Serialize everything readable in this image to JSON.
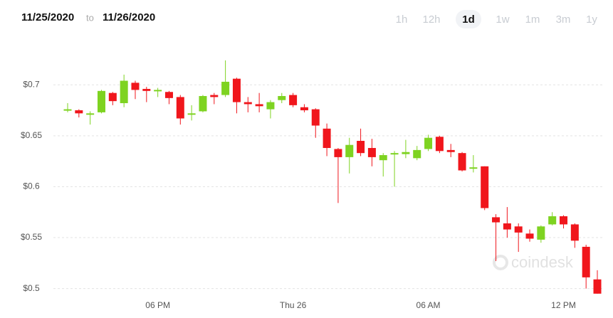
{
  "header": {
    "from_date": "11/25/2020",
    "separator": "to",
    "to_date": "11/26/2020",
    "ranges": [
      "1h",
      "12h",
      "1d",
      "1w",
      "1m",
      "3m",
      "1y"
    ],
    "active_range": "1d"
  },
  "watermark": "coindesk",
  "chart_data": {
    "type": "candlestick",
    "categories": [
      null,
      null,
      null,
      null,
      null,
      null,
      null,
      null,
      "06 PM",
      null,
      null,
      null,
      null,
      null,
      null,
      null,
      null,
      null,
      null,
      null,
      "Thu 26",
      null,
      null,
      null,
      null,
      null,
      null,
      null,
      null,
      null,
      null,
      null,
      "06 AM",
      null,
      null,
      null,
      null,
      null,
      null,
      null,
      null,
      null,
      null,
      null,
      "12 PM",
      null,
      null,
      null
    ],
    "open": [
      0.675,
      0.675,
      0.671,
      0.673,
      0.692,
      0.682,
      0.702,
      0.696,
      0.694,
      0.693,
      0.688,
      0.671,
      0.674,
      0.69,
      0.69,
      0.706,
      0.683,
      0.681,
      0.676,
      0.685,
      0.69,
      0.678,
      0.676,
      0.657,
      0.637,
      0.629,
      0.645,
      0.638,
      0.626,
      0.632,
      0.632,
      0.628,
      0.637,
      0.649,
      0.636,
      0.633,
      0.618,
      0.62,
      0.57,
      0.564,
      0.561,
      0.554,
      0.548,
      0.563,
      0.571,
      0.563,
      0.541,
      0.509
    ],
    "high": [
      0.682,
      0.676,
      0.674,
      0.695,
      0.693,
      0.71,
      0.704,
      0.698,
      0.697,
      0.694,
      0.69,
      0.68,
      0.69,
      0.692,
      0.724,
      0.707,
      0.688,
      0.692,
      0.685,
      0.692,
      0.692,
      0.681,
      0.677,
      0.662,
      0.638,
      0.648,
      0.657,
      0.647,
      0.633,
      0.635,
      0.646,
      0.64,
      0.651,
      0.65,
      0.642,
      0.634,
      0.631,
      0.62,
      0.573,
      0.58,
      0.564,
      0.558,
      0.562,
      0.575,
      0.572,
      0.564,
      0.543,
      0.518
    ],
    "low": [
      0.673,
      0.668,
      0.661,
      0.672,
      0.68,
      0.678,
      0.686,
      0.683,
      0.688,
      0.681,
      0.661,
      0.665,
      0.673,
      0.681,
      0.688,
      0.672,
      0.673,
      0.673,
      0.667,
      0.682,
      0.678,
      0.673,
      0.648,
      0.63,
      0.584,
      0.613,
      0.63,
      0.62,
      0.61,
      0.6,
      0.628,
      0.626,
      0.635,
      0.633,
      0.629,
      0.615,
      0.614,
      0.577,
      0.527,
      0.55,
      0.536,
      0.546,
      0.545,
      0.562,
      0.559,
      0.54,
      0.5,
      0.495
    ],
    "close": [
      0.676,
      0.672,
      0.672,
      0.694,
      0.684,
      0.704,
      0.695,
      0.694,
      0.695,
      0.687,
      0.667,
      0.672,
      0.689,
      0.688,
      0.703,
      0.683,
      0.681,
      0.679,
      0.683,
      0.689,
      0.68,
      0.675,
      0.66,
      0.638,
      0.629,
      0.641,
      0.633,
      0.629,
      0.631,
      0.633,
      0.634,
      0.636,
      0.648,
      0.635,
      0.634,
      0.616,
      0.619,
      0.579,
      0.565,
      0.558,
      0.555,
      0.549,
      0.561,
      0.571,
      0.563,
      0.547,
      0.511,
      0.495
    ],
    "up_color": "#7ed321",
    "down_color": "#f0161c",
    "ylim": [
      0.476,
      0.726
    ],
    "yticks": [
      {
        "value": 0.5,
        "label": "$0.5"
      },
      {
        "value": 0.55,
        "label": "$0.55"
      },
      {
        "value": 0.6,
        "label": "$0.6"
      },
      {
        "value": 0.65,
        "label": "$0.65"
      },
      {
        "value": 0.7,
        "label": "$0.7"
      }
    ],
    "grid": true
  }
}
